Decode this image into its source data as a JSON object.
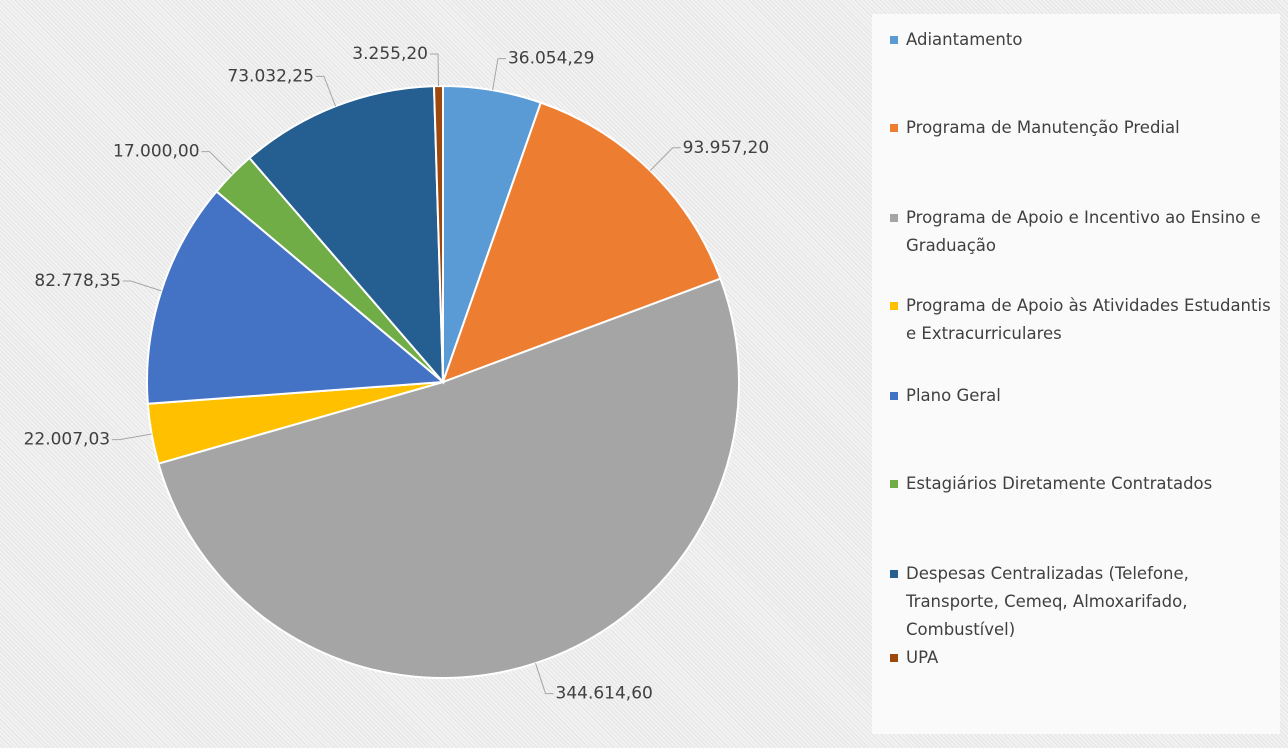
{
  "chart_data": {
    "type": "pie",
    "categories": [
      "Adiantamento",
      "Programa de Manutenção Predial",
      "Programa de Apoio e Incentivo ao Ensino e Graduação",
      "Programa de Apoio às Atividades Estudantis e Extracurriculares",
      "Plano Geral",
      "Estagiários Diretamente Contratados",
      "Despesas Centralizadas (Telefone, Transporte, Cemeq, Almoxarifado, Combustível)",
      "UPA"
    ],
    "values": [
      36054.29,
      93957.2,
      344614.6,
      22007.03,
      82778.35,
      17000.0,
      73032.25,
      3255.2
    ],
    "value_labels": [
      "36.054,29",
      "93.957,20",
      "344.614,60",
      "22.007,03",
      "82.778,35",
      "17.000,00",
      "73.032,25",
      "3.255,20"
    ],
    "colors": [
      "#5b9bd5",
      "#ed7d31",
      "#a5a5a5",
      "#ffc000",
      "#4472c4",
      "#70ad47",
      "#255e91",
      "#9e480e"
    ],
    "legend": "right"
  }
}
